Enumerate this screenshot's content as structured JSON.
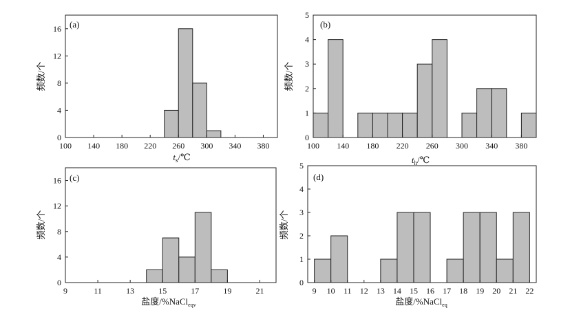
{
  "chart_data": [
    {
      "id": "a",
      "type": "bar",
      "panel_label": "(a)",
      "xlabel_main": "t",
      "xlabel_sub": "s",
      "xlabel_unit": "/℃",
      "ylabel": "频数/个",
      "xlim": [
        100,
        400
      ],
      "ylim": [
        0,
        18
      ],
      "xticks": [
        100,
        140,
        180,
        220,
        260,
        300,
        340,
        380
      ],
      "yticks": [
        0,
        4,
        8,
        12,
        16
      ],
      "bin_width": 20,
      "bins": [
        {
          "start": 240,
          "value": 4
        },
        {
          "start": 260,
          "value": 16
        },
        {
          "start": 280,
          "value": 8
        },
        {
          "start": 300,
          "value": 1
        }
      ]
    },
    {
      "id": "b",
      "type": "bar",
      "panel_label": "(b)",
      "xlabel_main": "t",
      "xlabel_sub": "h",
      "xlabel_unit": "/℃",
      "ylabel": "频数/个",
      "xlim": [
        100,
        400
      ],
      "ylim": [
        0,
        5
      ],
      "xticks": [
        100,
        140,
        180,
        220,
        260,
        300,
        340,
        380
      ],
      "yticks": [
        0,
        1,
        2,
        3,
        4,
        5
      ],
      "bin_width": 20,
      "bins": [
        {
          "start": 100,
          "value": 1
        },
        {
          "start": 120,
          "value": 4
        },
        {
          "start": 160,
          "value": 1
        },
        {
          "start": 180,
          "value": 1
        },
        {
          "start": 200,
          "value": 1
        },
        {
          "start": 220,
          "value": 1
        },
        {
          "start": 240,
          "value": 3
        },
        {
          "start": 260,
          "value": 4
        },
        {
          "start": 300,
          "value": 1
        },
        {
          "start": 320,
          "value": 2
        },
        {
          "start": 340,
          "value": 2
        },
        {
          "start": 380,
          "value": 1
        }
      ]
    },
    {
      "id": "c",
      "type": "bar",
      "panel_label": "(c)",
      "xlabel_main": "盐度/%NaCl",
      "xlabel_sub": "eqv",
      "xlabel_unit": "",
      "ylabel": "频数/个",
      "xlim": [
        9,
        22
      ],
      "ylim": [
        0,
        18
      ],
      "xticks": [
        9,
        11,
        13,
        15,
        17,
        19,
        21
      ],
      "yticks": [
        0,
        4,
        8,
        12,
        16
      ],
      "bin_width": 1,
      "bins": [
        {
          "start": 14,
          "value": 2
        },
        {
          "start": 15,
          "value": 7
        },
        {
          "start": 16,
          "value": 4
        },
        {
          "start": 17,
          "value": 11
        },
        {
          "start": 18,
          "value": 2
        }
      ]
    },
    {
      "id": "d",
      "type": "bar",
      "panel_label": "(d)",
      "xlabel_main": "盐度/%NaCl",
      "xlabel_sub": "eq",
      "xlabel_unit": "",
      "ylabel": "频数/个",
      "xlim": [
        8.6,
        22.4
      ],
      "ylim": [
        0,
        5
      ],
      "xticks": [
        9,
        10,
        11,
        12,
        13,
        14,
        15,
        16,
        17,
        18,
        19,
        20,
        21,
        22
      ],
      "yticks": [
        0,
        1,
        2,
        3,
        4,
        5
      ],
      "bin_width": 1,
      "bins": [
        {
          "start": 9,
          "value": 1
        },
        {
          "start": 10,
          "value": 2
        },
        {
          "start": 13,
          "value": 1
        },
        {
          "start": 14,
          "value": 3
        },
        {
          "start": 15,
          "value": 3
        },
        {
          "start": 17,
          "value": 1
        },
        {
          "start": 18,
          "value": 3
        },
        {
          "start": 19,
          "value": 3
        },
        {
          "start": 20,
          "value": 1
        },
        {
          "start": 21,
          "value": 3
        }
      ]
    }
  ]
}
